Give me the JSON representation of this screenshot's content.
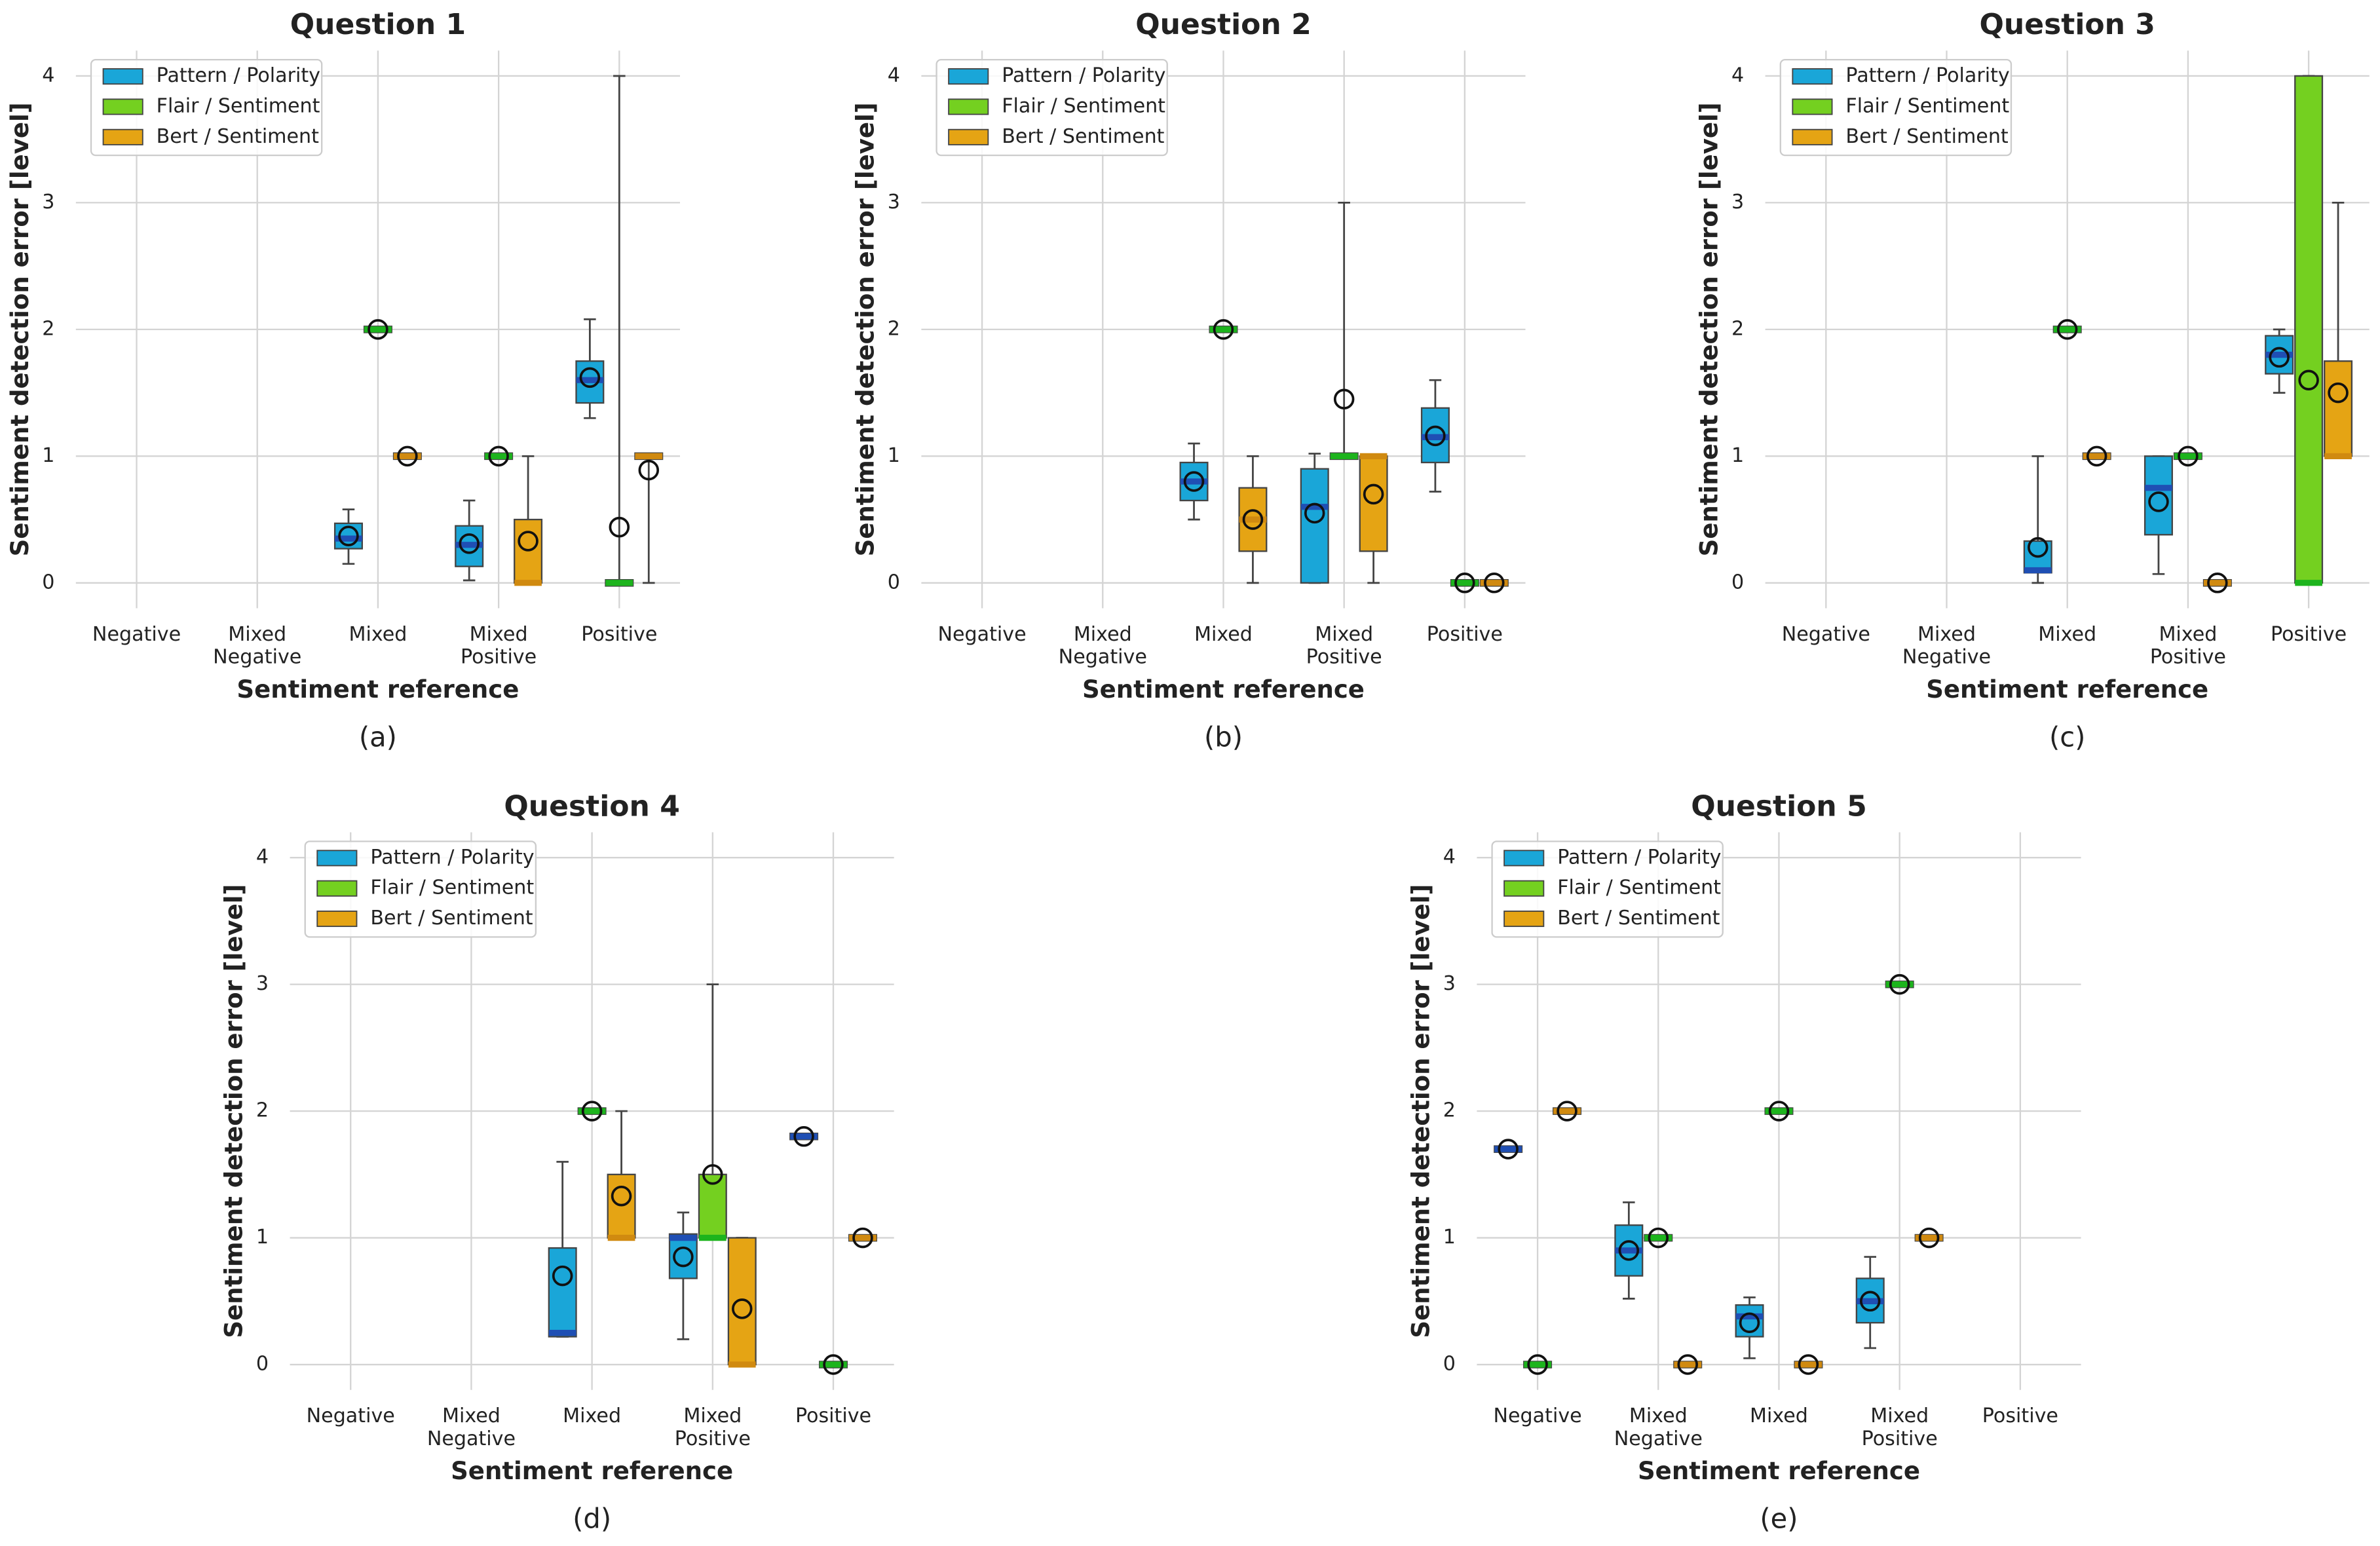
{
  "chart_data": [
    {
      "type": "box",
      "title": "Question 1",
      "caption": "(a)",
      "xlabel": "Sentiment reference",
      "ylabel": "Sentiment detection error [level]",
      "categories": [
        "Negative",
        "Mixed Negative",
        "Mixed",
        "Mixed Positive",
        "Positive"
      ],
      "ylim": [
        -0.2,
        4.2
      ],
      "yticks": [
        0,
        1,
        2,
        3,
        4
      ],
      "grid": true,
      "legend": "upper left",
      "series": [
        {
          "name": "Pattern / Polarity",
          "color": "#1aa6d8",
          "median_color": "#1f4fb4",
          "boxes": [
            null,
            null,
            {
              "min": 0.15,
              "q1": 0.27,
              "median": 0.35,
              "q3": 0.47,
              "max": 0.58,
              "mean": 0.37
            },
            {
              "min": 0.02,
              "q1": 0.13,
              "median": 0.3,
              "q3": 0.45,
              "max": 0.65,
              "mean": 0.31
            },
            {
              "min": 1.3,
              "q1": 1.42,
              "median": 1.6,
              "q3": 1.75,
              "max": 2.08,
              "mean": 1.62
            }
          ]
        },
        {
          "name": "Flair / Sentiment",
          "color": "#74d020",
          "median_color": "#1db41d",
          "boxes": [
            null,
            null,
            {
              "min": 2,
              "q1": 2,
              "median": 2,
              "q3": 2,
              "max": 2,
              "mean": 2
            },
            {
              "min": 1,
              "q1": 1,
              "median": 1,
              "q3": 1,
              "max": 1,
              "mean": 1
            },
            {
              "min": 0,
              "q1": 0,
              "median": 0,
              "q3": 0,
              "max": 4,
              "mean": 0.44
            }
          ]
        },
        {
          "name": "Bert / Sentiment",
          "color": "#e5a414",
          "median_color": "#d08a10",
          "boxes": [
            null,
            null,
            {
              "min": 1,
              "q1": 1,
              "median": 1,
              "q3": 1,
              "max": 1,
              "mean": 1
            },
            {
              "min": 0,
              "q1": 0,
              "median": 0,
              "q3": 0.5,
              "max": 1,
              "mean": 0.33
            },
            {
              "min": 0,
              "q1": 1,
              "median": 1,
              "q3": 1,
              "max": 1,
              "mean": 0.89
            }
          ]
        }
      ]
    },
    {
      "type": "box",
      "title": "Question 2",
      "caption": "(b)",
      "xlabel": "Sentiment reference",
      "ylabel": "Sentiment detection error [level]",
      "categories": [
        "Negative",
        "Mixed Negative",
        "Mixed",
        "Mixed Positive",
        "Positive"
      ],
      "ylim": [
        -0.2,
        4.2
      ],
      "yticks": [
        0,
        1,
        2,
        3,
        4
      ],
      "grid": true,
      "legend": "upper left",
      "series": [
        {
          "name": "Pattern / Polarity",
          "color": "#1aa6d8",
          "median_color": "#1f4fb4",
          "boxes": [
            null,
            null,
            {
              "min": 0.5,
              "q1": 0.65,
              "median": 0.8,
              "q3": 0.95,
              "max": 1.1,
              "mean": 0.8
            },
            {
              "min": 0,
              "q1": 0,
              "median": 0.6,
              "q3": 0.9,
              "max": 1.02,
              "mean": 0.55
            },
            {
              "min": 0.72,
              "q1": 0.95,
              "median": 1.15,
              "q3": 1.38,
              "max": 1.6,
              "mean": 1.16
            }
          ]
        },
        {
          "name": "Flair / Sentiment",
          "color": "#74d020",
          "median_color": "#1db41d",
          "boxes": [
            null,
            null,
            {
              "min": 2,
              "q1": 2,
              "median": 2,
              "q3": 2,
              "max": 2,
              "mean": 2
            },
            {
              "min": 1,
              "q1": 1,
              "median": 1,
              "q3": 1,
              "max": 3,
              "mean": 1.45
            },
            {
              "min": 0,
              "q1": 0,
              "median": 0,
              "q3": 0,
              "max": 0,
              "mean": 0
            }
          ]
        },
        {
          "name": "Bert / Sentiment",
          "color": "#e5a414",
          "median_color": "#d08a10",
          "boxes": [
            null,
            null,
            {
              "min": 0,
              "q1": 0.25,
              "median": 0.5,
              "q3": 0.75,
              "max": 1,
              "mean": 0.5
            },
            {
              "min": 0,
              "q1": 0.25,
              "median": 1,
              "q3": 1,
              "max": 1,
              "mean": 0.7
            },
            {
              "min": 0,
              "q1": 0,
              "median": 0,
              "q3": 0,
              "max": 0,
              "mean": 0
            }
          ]
        }
      ]
    },
    {
      "type": "box",
      "title": "Question 3",
      "caption": "(c)",
      "xlabel": "Sentiment reference",
      "ylabel": "Sentiment detection error [level]",
      "categories": [
        "Negative",
        "Mixed Negative",
        "Mixed",
        "Mixed Positive",
        "Positive"
      ],
      "ylim": [
        -0.2,
        4.2
      ],
      "yticks": [
        0,
        1,
        2,
        3,
        4
      ],
      "grid": true,
      "legend": "upper left",
      "series": [
        {
          "name": "Pattern / Polarity",
          "color": "#1aa6d8",
          "median_color": "#1f4fb4",
          "boxes": [
            null,
            null,
            {
              "min": 0,
              "q1": 0.08,
              "median": 0.1,
              "q3": 0.33,
              "max": 1,
              "mean": 0.28
            },
            {
              "min": 0.07,
              "q1": 0.38,
              "median": 0.75,
              "q3": 1,
              "max": 1,
              "mean": 0.64
            },
            {
              "min": 1.5,
              "q1": 1.65,
              "median": 1.8,
              "q3": 1.95,
              "max": 2,
              "mean": 1.78
            }
          ]
        },
        {
          "name": "Flair / Sentiment",
          "color": "#74d020",
          "median_color": "#1db41d",
          "boxes": [
            null,
            null,
            {
              "min": 2,
              "q1": 2,
              "median": 2,
              "q3": 2,
              "max": 2,
              "mean": 2
            },
            {
              "min": 1,
              "q1": 1,
              "median": 1,
              "q3": 1,
              "max": 1,
              "mean": 1
            },
            {
              "min": 0,
              "q1": 0,
              "median": 0,
              "q3": 4,
              "max": 4,
              "mean": 1.6
            }
          ]
        },
        {
          "name": "Bert / Sentiment",
          "color": "#e5a414",
          "median_color": "#d08a10",
          "boxes": [
            null,
            null,
            {
              "min": 1,
              "q1": 1,
              "median": 1,
              "q3": 1,
              "max": 1,
              "mean": 1
            },
            {
              "min": 0,
              "q1": 0,
              "median": 0,
              "q3": 0,
              "max": 0,
              "mean": 0
            },
            {
              "min": 1,
              "q1": 1,
              "median": 1,
              "q3": 1.75,
              "max": 3,
              "mean": 1.5
            }
          ]
        }
      ]
    },
    {
      "type": "box",
      "title": "Question 4",
      "caption": "(d)",
      "xlabel": "Sentiment reference",
      "ylabel": "Sentiment detection error [level]",
      "categories": [
        "Negative",
        "Mixed Negative",
        "Mixed",
        "Mixed Positive",
        "Positive"
      ],
      "ylim": [
        -0.2,
        4.2
      ],
      "yticks": [
        0,
        1,
        2,
        3,
        4
      ],
      "grid": true,
      "legend": "upper left",
      "series": [
        {
          "name": "Pattern / Polarity",
          "color": "#1aa6d8",
          "median_color": "#1f4fb4",
          "boxes": [
            null,
            null,
            {
              "min": 0.22,
              "q1": 0.22,
              "median": 0.25,
              "q3": 0.92,
              "max": 1.6,
              "mean": 0.7
            },
            {
              "min": 0.2,
              "q1": 0.68,
              "median": 1,
              "q3": 1.03,
              "max": 1.2,
              "mean": 0.85
            },
            {
              "min": 1.8,
              "q1": 1.8,
              "median": 1.8,
              "q3": 1.8,
              "max": 1.8,
              "mean": 1.8
            }
          ]
        },
        {
          "name": "Flair / Sentiment",
          "color": "#74d020",
          "median_color": "#1db41d",
          "boxes": [
            null,
            null,
            {
              "min": 2,
              "q1": 2,
              "median": 2,
              "q3": 2,
              "max": 2,
              "mean": 2
            },
            {
              "min": 1,
              "q1": 1,
              "median": 1,
              "q3": 1.5,
              "max": 3,
              "mean": 1.5
            },
            {
              "min": 0,
              "q1": 0,
              "median": 0,
              "q3": 0,
              "max": 0,
              "mean": 0
            }
          ]
        },
        {
          "name": "Bert / Sentiment",
          "color": "#e5a414",
          "median_color": "#d08a10",
          "boxes": [
            null,
            null,
            {
              "min": 1,
              "q1": 1,
              "median": 1,
              "q3": 1.5,
              "max": 2,
              "mean": 1.33
            },
            {
              "min": 0,
              "q1": 0,
              "median": 0,
              "q3": 1,
              "max": 1,
              "mean": 0.44
            },
            {
              "min": 1,
              "q1": 1,
              "median": 1,
              "q3": 1,
              "max": 1,
              "mean": 1
            }
          ]
        }
      ]
    },
    {
      "type": "box",
      "title": "Question 5",
      "caption": "(e)",
      "xlabel": "Sentiment reference",
      "ylabel": "Sentiment detection error [level]",
      "categories": [
        "Negative",
        "Mixed Negative",
        "Mixed",
        "Mixed Positive",
        "Positive"
      ],
      "ylim": [
        -0.2,
        4.2
      ],
      "yticks": [
        0,
        1,
        2,
        3,
        4
      ],
      "grid": true,
      "legend": "upper left",
      "series": [
        {
          "name": "Pattern / Polarity",
          "color": "#1aa6d8",
          "median_color": "#1f4fb4",
          "boxes": [
            {
              "min": 1.7,
              "q1": 1.7,
              "median": 1.7,
              "q3": 1.7,
              "max": 1.7,
              "mean": 1.7
            },
            {
              "min": 0.52,
              "q1": 0.7,
              "median": 0.9,
              "q3": 1.1,
              "max": 1.28,
              "mean": 0.9
            },
            {
              "min": 0.05,
              "q1": 0.22,
              "median": 0.38,
              "q3": 0.47,
              "max": 0.53,
              "mean": 0.33
            },
            {
              "min": 0.13,
              "q1": 0.33,
              "median": 0.5,
              "q3": 0.68,
              "max": 0.85,
              "mean": 0.5
            },
            null
          ]
        },
        {
          "name": "Flair / Sentiment",
          "color": "#74d020",
          "median_color": "#1db41d",
          "boxes": [
            {
              "min": 0,
              "q1": 0,
              "median": 0,
              "q3": 0,
              "max": 0,
              "mean": 0
            },
            {
              "min": 1,
              "q1": 1,
              "median": 1,
              "q3": 1,
              "max": 1,
              "mean": 1
            },
            {
              "min": 2,
              "q1": 2,
              "median": 2,
              "q3": 2,
              "max": 2,
              "mean": 2
            },
            {
              "min": 3,
              "q1": 3,
              "median": 3,
              "q3": 3,
              "max": 3,
              "mean": 3
            },
            null
          ]
        },
        {
          "name": "Bert / Sentiment",
          "color": "#e5a414",
          "median_color": "#d08a10",
          "boxes": [
            {
              "min": 2,
              "q1": 2,
              "median": 2,
              "q3": 2,
              "max": 2,
              "mean": 2
            },
            {
              "min": 0,
              "q1": 0,
              "median": 0,
              "q3": 0,
              "max": 0,
              "mean": 0
            },
            {
              "min": 0,
              "q1": 0,
              "median": 0,
              "q3": 0,
              "max": 0,
              "mean": 0
            },
            {
              "min": 1,
              "q1": 1,
              "median": 1,
              "q3": 1,
              "max": 1,
              "mean": 1
            },
            null
          ]
        }
      ]
    }
  ]
}
